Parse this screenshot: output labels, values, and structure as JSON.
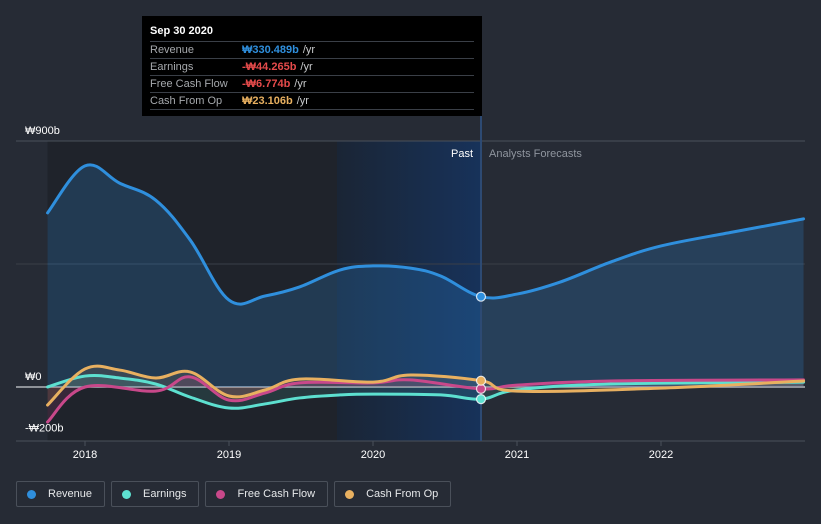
{
  "tooltip": {
    "date": "Sep 30 2020",
    "rows": [
      {
        "label": "Revenue",
        "value": "₩330.489b",
        "unit": "/yr",
        "color": "#2f8fdd"
      },
      {
        "label": "Earnings",
        "value": "-₩44.265b",
        "unit": "/yr",
        "color": "#e64b4b"
      },
      {
        "label": "Free Cash Flow",
        "value": "-₩6.774b",
        "unit": "/yr",
        "color": "#e64b4b"
      },
      {
        "label": "Cash From Op",
        "value": "₩23.106b",
        "unit": "/yr",
        "color": "#e8b060"
      }
    ]
  },
  "regions": {
    "past_label": "Past",
    "forecast_label": "Analysts Forecasts"
  },
  "legend": [
    {
      "label": "Revenue",
      "color": "#2f8fdd"
    },
    {
      "label": "Earnings",
      "color": "#5de0d0"
    },
    {
      "label": "Free Cash Flow",
      "color": "#c8488a"
    },
    {
      "label": "Cash From Op",
      "color": "#e8b060"
    }
  ],
  "chart_data": {
    "type": "line",
    "title": "",
    "xlabel": "",
    "ylabel": "",
    "currency": "₩",
    "unit": "b",
    "y_tick_labels": [
      "₩900b",
      "₩0",
      "-₩200b"
    ],
    "y_ticks": [
      900,
      0,
      -200
    ],
    "ylim": [
      -200,
      900
    ],
    "x_tick_labels": [
      "2018",
      "2019",
      "2020",
      "2021",
      "2022"
    ],
    "x_ticks": [
      2018,
      2019,
      2020,
      2021,
      2022
    ],
    "xlim": [
      2017.74,
      2022.99
    ],
    "past_end": 2020.75,
    "highlight_start": 2019.75,
    "grid": true,
    "legend_position": "bottom-left",
    "series": [
      {
        "name": "Revenue",
        "color": "#2f8fdd",
        "area": true,
        "x": [
          2017.74,
          2018.0,
          2018.24,
          2018.49,
          2018.73,
          2019.0,
          2019.25,
          2019.49,
          2019.77,
          2020.0,
          2020.26,
          2020.47,
          2020.75,
          2021.0,
          2021.3,
          2021.65,
          2022.0,
          2022.5,
          2022.99
        ],
        "values": [
          637,
          809,
          746,
          684,
          538,
          318,
          333,
          366,
          428,
          443,
          435,
          406,
          330.489,
          340,
          384,
          457,
          516,
          567,
          615
        ]
      },
      {
        "name": "Earnings",
        "color": "#5de0d0",
        "x": [
          2017.74,
          2018.0,
          2018.24,
          2018.49,
          2018.73,
          2019.0,
          2019.25,
          2019.49,
          2019.77,
          2020.0,
          2020.47,
          2020.75,
          2021.0,
          2021.65,
          2022.99
        ],
        "values": [
          0,
          40,
          33,
          11,
          -37,
          -77,
          -62,
          -40,
          -29,
          -26,
          -29,
          -44.265,
          -11,
          11,
          18
        ]
      },
      {
        "name": "Free Cash Flow",
        "color": "#c8488a",
        "x": [
          2017.74,
          2018.0,
          2018.49,
          2018.73,
          2019.0,
          2019.25,
          2019.49,
          2020.0,
          2020.26,
          2020.75,
          2021.0,
          2021.65,
          2022.99
        ],
        "values": [
          -128,
          0,
          -15,
          37,
          -48,
          -22,
          15,
          15,
          26,
          -6.774,
          7,
          22,
          26
        ]
      },
      {
        "name": "Cash From Op",
        "color": "#e8b060",
        "x": [
          2017.74,
          2018.0,
          2018.24,
          2018.49,
          2018.73,
          2019.0,
          2019.25,
          2019.49,
          2020.0,
          2020.26,
          2020.75,
          2021.0,
          2022.0,
          2022.99
        ],
        "values": [
          -66,
          66,
          62,
          33,
          55,
          -33,
          -11,
          29,
          18,
          44,
          23.106,
          -15,
          -4,
          22
        ]
      }
    ]
  }
}
